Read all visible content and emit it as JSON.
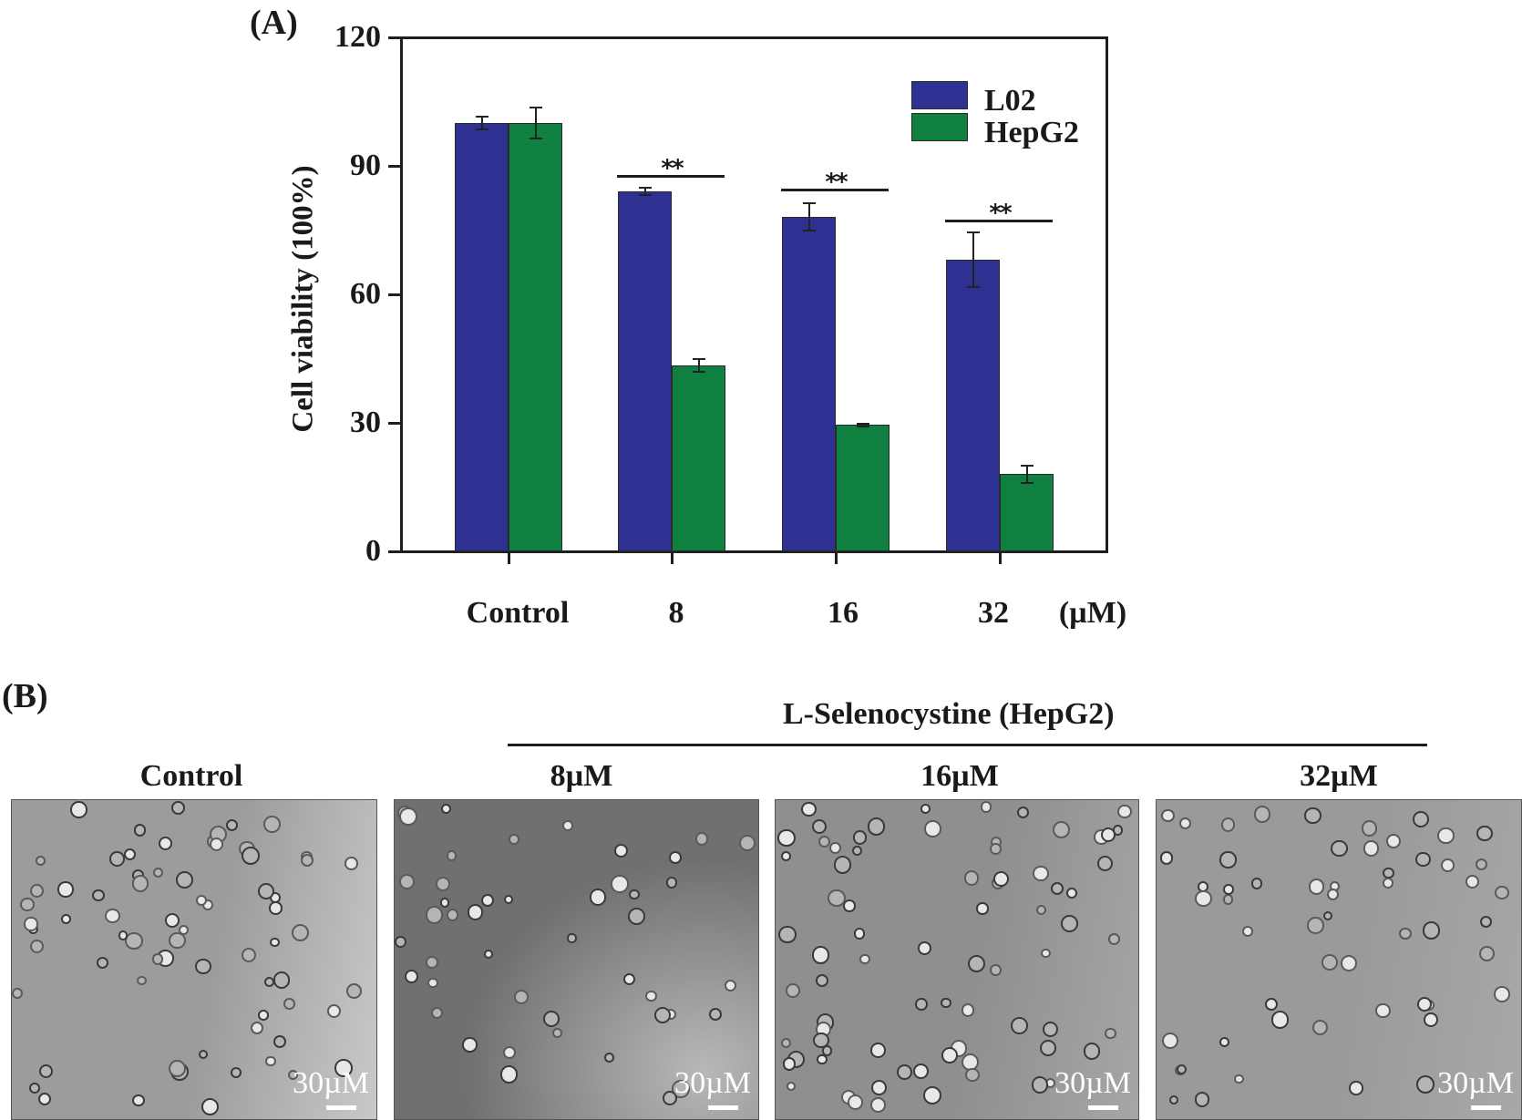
{
  "panel_a": {
    "label": "(A)",
    "y_axis_title": "Cell viability (100%)",
    "x_unit_label": "(µM)",
    "legend": [
      {
        "label": "L02",
        "color": "#2e3191"
      },
      {
        "label": "HepG2",
        "color": "#0f8040"
      }
    ],
    "significance_marker": "**"
  },
  "panel_b": {
    "label": "(B)",
    "group_title": "L-Selenocystine (HepG2)",
    "images": [
      {
        "label": "Control",
        "scale_text": "30µM",
        "tone": "#9c9c9c",
        "tone2": "#c9c9c9"
      },
      {
        "label": "8µM",
        "scale_text": "30µM",
        "tone": "#707070",
        "tone2": "#b8b8b8"
      },
      {
        "label": "16µM",
        "scale_text": "30µM",
        "tone": "#8f8f8f",
        "tone2": "#a6a6a6"
      },
      {
        "label": "32µM",
        "scale_text": "30µM",
        "tone": "#9a9a9a",
        "tone2": "#a8a8a8"
      }
    ]
  },
  "chart_data": {
    "type": "bar",
    "title": "",
    "xlabel": "(µM)",
    "ylabel": "Cell viability (100%)",
    "categories": [
      "Control",
      "8",
      "16",
      "32"
    ],
    "ylim": [
      0,
      120
    ],
    "yticks": [
      0,
      30,
      60,
      90,
      120
    ],
    "grid": false,
    "legend_position": "upper right",
    "series": [
      {
        "name": "L02",
        "color": "#2e3191",
        "values": [
          100,
          84,
          78,
          68
        ],
        "errors": [
          1.5,
          0.8,
          3.2,
          6.4
        ]
      },
      {
        "name": "HepG2",
        "color": "#0f8040",
        "values": [
          100,
          43.5,
          29.5,
          18
        ],
        "errors": [
          3.6,
          1.5,
          0.3,
          2.0
        ]
      }
    ],
    "annotations": [
      {
        "category": "8",
        "text": "**"
      },
      {
        "category": "16",
        "text": "**"
      },
      {
        "category": "32",
        "text": "**"
      }
    ]
  }
}
